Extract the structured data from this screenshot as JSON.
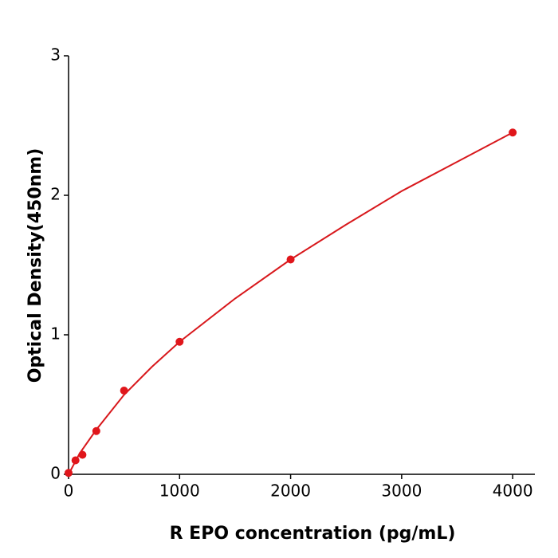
{
  "chart_data": {
    "type": "scatter",
    "x_label": "R  EPO concentration (pg/mL)",
    "y_label": "Optical Density(450nm)",
    "x": [
      0,
      62.5,
      125,
      250,
      500,
      1000,
      2000,
      4000
    ],
    "values": [
      0.01,
      0.1,
      0.14,
      0.31,
      0.6,
      0.95,
      1.54,
      2.45
    ],
    "color": "#e0161b",
    "curve": {
      "x": [
        0,
        100,
        250,
        500,
        750,
        1000,
        1500,
        2000,
        2500,
        3000,
        3500,
        4000
      ],
      "values": [
        0,
        0.15,
        0.32,
        0.57,
        0.77,
        0.95,
        1.26,
        1.54,
        1.79,
        2.03,
        2.24,
        2.45
      ],
      "color": "#d8181c"
    },
    "xlim": [
      0,
      4200
    ],
    "xticks": [
      0,
      1000,
      2000,
      3000,
      4000
    ],
    "ylim": [
      0,
      3
    ],
    "yticks": [
      0,
      1,
      2,
      3
    ],
    "grid": false
  }
}
